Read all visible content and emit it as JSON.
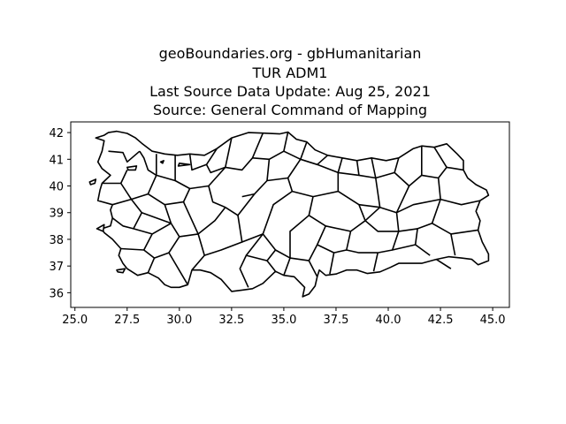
{
  "title": {
    "line1": "geoBoundaries.org - gbHumanitarian",
    "line2": "TUR ADM1",
    "line3": "Last Source Data Update: Aug 25, 2021",
    "line4": "Source: General Command of Mapping"
  },
  "map": {
    "country": "TUR",
    "level": "ADM1",
    "x_range": [
      24.8,
      45.8
    ],
    "y_range": [
      35.45,
      42.4
    ],
    "x_ticks": [
      25.0,
      27.5,
      30.0,
      32.5,
      35.0,
      37.5,
      40.0,
      42.5,
      45.0
    ],
    "x_tick_labels": [
      "25.0",
      "27.5",
      "30.0",
      "32.5",
      "35.0",
      "37.5",
      "40.0",
      "42.5",
      "45.0"
    ],
    "y_ticks": [
      36,
      37,
      38,
      39,
      40,
      41,
      42
    ],
    "y_tick_labels": [
      "36",
      "37",
      "38",
      "39",
      "40",
      "41",
      "42"
    ],
    "stroke_color": "#000000",
    "fill_color": "#ffffff",
    "outline": [
      [
        26.0,
        41.8
      ],
      [
        26.4,
        41.9
      ],
      [
        26.6,
        42.0
      ],
      [
        27.0,
        42.05
      ],
      [
        27.5,
        41.97
      ],
      [
        27.9,
        41.8
      ],
      [
        28.2,
        41.6
      ],
      [
        28.7,
        41.3
      ],
      [
        29.0,
        41.25
      ],
      [
        29.3,
        41.2
      ],
      [
        29.9,
        41.15
      ],
      [
        30.5,
        41.2
      ],
      [
        31.2,
        41.15
      ],
      [
        31.8,
        41.4
      ],
      [
        32.5,
        41.8
      ],
      [
        33.3,
        42.0
      ],
      [
        34.0,
        41.98
      ],
      [
        34.8,
        41.95
      ],
      [
        35.2,
        42.02
      ],
      [
        35.6,
        41.75
      ],
      [
        36.1,
        41.65
      ],
      [
        36.5,
        41.35
      ],
      [
        37.1,
        41.15
      ],
      [
        37.8,
        41.05
      ],
      [
        38.5,
        40.95
      ],
      [
        39.2,
        41.05
      ],
      [
        39.9,
        40.95
      ],
      [
        40.5,
        41.05
      ],
      [
        41.2,
        41.4
      ],
      [
        41.6,
        41.5
      ],
      [
        42.2,
        41.45
      ],
      [
        42.8,
        41.58
      ],
      [
        43.3,
        41.2
      ],
      [
        43.6,
        40.95
      ],
      [
        43.6,
        40.6
      ],
      [
        43.8,
        40.3
      ],
      [
        44.2,
        40.05
      ],
      [
        44.7,
        39.85
      ],
      [
        44.8,
        39.65
      ],
      [
        44.4,
        39.45
      ],
      [
        44.2,
        39.05
      ],
      [
        44.4,
        38.7
      ],
      [
        44.3,
        38.35
      ],
      [
        44.5,
        37.9
      ],
      [
        44.6,
        37.75
      ],
      [
        44.8,
        37.45
      ],
      [
        44.8,
        37.2
      ],
      [
        44.3,
        37.05
      ],
      [
        44.0,
        37.25
      ],
      [
        43.5,
        37.3
      ],
      [
        42.9,
        37.35
      ],
      [
        42.3,
        37.25
      ],
      [
        41.6,
        37.1
      ],
      [
        41.0,
        37.1
      ],
      [
        40.5,
        37.1
      ],
      [
        40.1,
        36.95
      ],
      [
        39.6,
        36.78
      ],
      [
        39.0,
        36.72
      ],
      [
        38.5,
        36.85
      ],
      [
        38.0,
        36.85
      ],
      [
        37.5,
        36.7
      ],
      [
        37.0,
        36.65
      ],
      [
        36.7,
        36.85
      ],
      [
        36.6,
        36.6
      ],
      [
        36.5,
        36.25
      ],
      [
        36.2,
        35.95
      ],
      [
        35.9,
        35.85
      ],
      [
        36.0,
        36.2
      ],
      [
        35.5,
        36.6
      ],
      [
        35.0,
        36.65
      ],
      [
        34.6,
        36.8
      ],
      [
        34.0,
        36.35
      ],
      [
        33.5,
        36.15
      ],
      [
        33.0,
        36.1
      ],
      [
        32.5,
        36.05
      ],
      [
        32.0,
        36.5
      ],
      [
        31.5,
        36.75
      ],
      [
        31.0,
        36.85
      ],
      [
        30.6,
        36.85
      ],
      [
        30.4,
        36.3
      ],
      [
        30.0,
        36.2
      ],
      [
        29.6,
        36.2
      ],
      [
        29.3,
        36.3
      ],
      [
        29.0,
        36.55
      ],
      [
        28.5,
        36.75
      ],
      [
        28.0,
        36.65
      ],
      [
        27.5,
        36.9
      ],
      [
        27.3,
        37.1
      ],
      [
        27.1,
        37.4
      ],
      [
        27.2,
        37.65
      ],
      [
        26.8,
        38.0
      ],
      [
        26.4,
        38.25
      ],
      [
        26.3,
        38.4
      ],
      [
        26.7,
        38.5
      ],
      [
        26.8,
        38.8
      ],
      [
        26.7,
        39.1
      ],
      [
        26.8,
        39.3
      ],
      [
        26.1,
        39.45
      ],
      [
        26.2,
        39.85
      ],
      [
        26.3,
        40.1
      ],
      [
        26.7,
        40.4
      ],
      [
        26.3,
        40.65
      ],
      [
        26.1,
        40.9
      ],
      [
        26.3,
        41.3
      ],
      [
        26.4,
        41.7
      ]
    ],
    "islands": [
      [
        [
          25.7,
          40.15
        ],
        [
          26.0,
          40.25
        ],
        [
          25.95,
          40.1
        ],
        [
          25.75,
          40.05
        ]
      ],
      [
        [
          27.5,
          40.7
        ],
        [
          27.95,
          40.75
        ],
        [
          27.9,
          40.6
        ],
        [
          27.55,
          40.6
        ]
      ],
      [
        [
          29.1,
          40.9
        ],
        [
          29.25,
          40.95
        ],
        [
          29.2,
          40.85
        ]
      ],
      [
        [
          26.05,
          38.4
        ],
        [
          26.4,
          38.55
        ],
        [
          26.35,
          38.3
        ]
      ],
      [
        [
          27.0,
          36.85
        ],
        [
          27.4,
          36.9
        ],
        [
          27.3,
          36.75
        ],
        [
          27.05,
          36.78
        ]
      ],
      [
        [
          30.0,
          40.85
        ],
        [
          30.5,
          40.8
        ],
        [
          29.95,
          40.75
        ]
      ]
    ],
    "internal_borders": [
      [
        [
          26.6,
          41.3
        ],
        [
          27.3,
          41.25
        ],
        [
          27.5,
          40.9
        ],
        [
          28.1,
          41.3
        ]
      ],
      [
        [
          28.1,
          41.3
        ],
        [
          28.3,
          41.05
        ],
        [
          28.5,
          40.6
        ],
        [
          28.9,
          40.4
        ]
      ],
      [
        [
          28.9,
          41.2
        ],
        [
          28.9,
          40.4
        ],
        [
          29.8,
          40.2
        ]
      ],
      [
        [
          29.8,
          41.15
        ],
        [
          29.8,
          40.2
        ],
        [
          30.5,
          39.9
        ]
      ],
      [
        [
          30.5,
          41.2
        ],
        [
          30.6,
          40.6
        ],
        [
          31.3,
          40.8
        ],
        [
          31.5,
          40.5
        ],
        [
          32.2,
          40.7
        ]
      ],
      [
        [
          31.3,
          40.8
        ],
        [
          31.8,
          41.4
        ]
      ],
      [
        [
          32.2,
          40.7
        ],
        [
          32.5,
          41.8
        ]
      ],
      [
        [
          32.2,
          40.7
        ],
        [
          33.0,
          40.6
        ],
        [
          33.5,
          41.05
        ],
        [
          34.0,
          41.98
        ]
      ],
      [
        [
          33.5,
          41.05
        ],
        [
          34.3,
          41.0
        ],
        [
          35.0,
          41.3
        ],
        [
          35.2,
          42.02
        ]
      ],
      [
        [
          35.0,
          41.3
        ],
        [
          35.8,
          41.0
        ],
        [
          36.1,
          41.65
        ]
      ],
      [
        [
          35.8,
          41.0
        ],
        [
          36.6,
          40.8
        ],
        [
          37.1,
          41.15
        ]
      ],
      [
        [
          36.6,
          40.8
        ],
        [
          37.6,
          40.5
        ],
        [
          37.8,
          41.05
        ]
      ],
      [
        [
          37.6,
          40.5
        ],
        [
          38.6,
          40.4
        ],
        [
          38.5,
          40.95
        ]
      ],
      [
        [
          38.6,
          40.4
        ],
        [
          39.4,
          40.3
        ],
        [
          39.2,
          41.05
        ]
      ],
      [
        [
          39.4,
          40.3
        ],
        [
          40.3,
          40.5
        ],
        [
          40.5,
          41.05
        ]
      ],
      [
        [
          40.3,
          40.5
        ],
        [
          41.0,
          40.0
        ],
        [
          41.6,
          40.4
        ],
        [
          41.6,
          41.5
        ]
      ],
      [
        [
          41.6,
          40.4
        ],
        [
          42.4,
          40.3
        ],
        [
          42.8,
          40.7
        ],
        [
          42.2,
          41.45
        ]
      ],
      [
        [
          42.8,
          40.7
        ],
        [
          43.6,
          40.6
        ]
      ],
      [
        [
          42.4,
          40.3
        ],
        [
          42.5,
          39.5
        ],
        [
          43.5,
          39.3
        ],
        [
          44.4,
          39.45
        ]
      ],
      [
        [
          42.5,
          39.5
        ],
        [
          42.1,
          38.6
        ],
        [
          43.0,
          38.2
        ],
        [
          44.3,
          38.35
        ]
      ],
      [
        [
          43.0,
          38.2
        ],
        [
          43.2,
          37.4
        ]
      ],
      [
        [
          42.1,
          38.6
        ],
        [
          41.4,
          38.4
        ],
        [
          41.3,
          37.8
        ],
        [
          42.0,
          37.4
        ]
      ],
      [
        [
          41.4,
          38.4
        ],
        [
          40.5,
          38.3
        ],
        [
          40.2,
          37.6
        ],
        [
          41.3,
          37.8
        ]
      ],
      [
        [
          40.2,
          37.6
        ],
        [
          39.5,
          37.5
        ],
        [
          39.3,
          36.8
        ]
      ],
      [
        [
          40.5,
          38.3
        ],
        [
          40.4,
          39.0
        ],
        [
          41.2,
          39.3
        ],
        [
          42.5,
          39.5
        ]
      ],
      [
        [
          40.4,
          39.0
        ],
        [
          39.6,
          39.2
        ],
        [
          38.9,
          38.7
        ],
        [
          39.5,
          38.3
        ],
        [
          40.5,
          38.3
        ]
      ],
      [
        [
          38.9,
          38.7
        ],
        [
          38.2,
          38.3
        ],
        [
          38.0,
          37.6
        ],
        [
          38.6,
          37.5
        ],
        [
          39.5,
          37.5
        ]
      ],
      [
        [
          38.0,
          37.6
        ],
        [
          37.4,
          37.5
        ],
        [
          37.2,
          36.7
        ]
      ],
      [
        [
          37.4,
          37.5
        ],
        [
          36.6,
          37.8
        ],
        [
          36.2,
          37.2
        ],
        [
          36.6,
          36.6
        ]
      ],
      [
        [
          36.2,
          37.2
        ],
        [
          35.3,
          37.3
        ],
        [
          35.0,
          36.65
        ]
      ],
      [
        [
          35.3,
          37.3
        ],
        [
          34.6,
          37.6
        ],
        [
          34.2,
          37.2
        ],
        [
          34.6,
          36.8
        ]
      ],
      [
        [
          34.2,
          37.2
        ],
        [
          33.2,
          37.4
        ],
        [
          32.9,
          36.9
        ],
        [
          33.3,
          36.2
        ]
      ],
      [
        [
          33.2,
          37.4
        ],
        [
          34.0,
          38.2
        ],
        [
          34.6,
          37.6
        ]
      ],
      [
        [
          36.6,
          37.8
        ],
        [
          37.0,
          38.5
        ],
        [
          38.2,
          38.3
        ]
      ],
      [
        [
          37.0,
          38.5
        ],
        [
          36.2,
          38.9
        ],
        [
          35.3,
          38.3
        ],
        [
          35.3,
          37.3
        ]
      ],
      [
        [
          36.2,
          38.9
        ],
        [
          36.4,
          39.6
        ],
        [
          37.6,
          39.8
        ],
        [
          38.6,
          39.3
        ],
        [
          38.9,
          38.7
        ]
      ],
      [
        [
          38.6,
          39.3
        ],
        [
          39.6,
          39.2
        ],
        [
          39.4,
          40.3
        ]
      ],
      [
        [
          37.6,
          39.8
        ],
        [
          37.6,
          40.5
        ]
      ],
      [
        [
          36.4,
          39.6
        ],
        [
          35.4,
          39.8
        ],
        [
          34.5,
          39.3
        ],
        [
          34.0,
          38.2
        ]
      ],
      [
        [
          35.4,
          39.8
        ],
        [
          35.2,
          40.3
        ],
        [
          35.8,
          41.0
        ]
      ],
      [
        [
          35.2,
          40.3
        ],
        [
          34.2,
          40.2
        ],
        [
          33.6,
          39.7
        ],
        [
          33.0,
          39.6
        ]
      ],
      [
        [
          34.2,
          40.2
        ],
        [
          34.3,
          41.0
        ]
      ],
      [
        [
          33.6,
          39.7
        ],
        [
          32.8,
          38.9
        ],
        [
          32.2,
          39.2
        ],
        [
          31.6,
          39.4
        ],
        [
          31.4,
          40.0
        ],
        [
          32.2,
          40.7
        ]
      ],
      [
        [
          32.8,
          38.9
        ],
        [
          33.0,
          37.9
        ],
        [
          34.0,
          38.2
        ]
      ],
      [
        [
          33.0,
          37.9
        ],
        [
          32.0,
          37.6
        ],
        [
          31.2,
          37.4
        ],
        [
          30.6,
          36.85
        ]
      ],
      [
        [
          31.2,
          37.4
        ],
        [
          30.9,
          38.2
        ],
        [
          31.7,
          38.7
        ],
        [
          32.2,
          39.2
        ]
      ],
      [
        [
          30.9,
          38.2
        ],
        [
          30.0,
          38.1
        ],
        [
          29.5,
          37.5
        ],
        [
          30.4,
          36.3
        ]
      ],
      [
        [
          29.5,
          37.5
        ],
        [
          28.8,
          37.3
        ],
        [
          28.5,
          36.75
        ]
      ],
      [
        [
          28.8,
          37.3
        ],
        [
          28.3,
          37.6
        ],
        [
          27.2,
          37.65
        ]
      ],
      [
        [
          28.3,
          37.6
        ],
        [
          28.7,
          38.2
        ],
        [
          29.6,
          38.6
        ],
        [
          30.0,
          38.1
        ]
      ],
      [
        [
          28.7,
          38.2
        ],
        [
          27.8,
          38.4
        ],
        [
          27.3,
          38.5
        ],
        [
          26.8,
          38.8
        ]
      ],
      [
        [
          27.8,
          38.4
        ],
        [
          28.2,
          39.0
        ],
        [
          29.6,
          38.6
        ]
      ],
      [
        [
          28.2,
          39.0
        ],
        [
          27.7,
          39.5
        ],
        [
          26.8,
          39.3
        ]
      ],
      [
        [
          27.7,
          39.5
        ],
        [
          28.5,
          39.7
        ],
        [
          29.3,
          39.3
        ],
        [
          29.6,
          38.6
        ]
      ],
      [
        [
          29.3,
          39.3
        ],
        [
          30.2,
          39.4
        ],
        [
          30.9,
          38.2
        ]
      ],
      [
        [
          30.2,
          39.4
        ],
        [
          30.5,
          39.9
        ],
        [
          31.4,
          40.0
        ]
      ],
      [
        [
          28.5,
          39.7
        ],
        [
          28.9,
          40.4
        ]
      ],
      [
        [
          26.3,
          40.1
        ],
        [
          27.2,
          40.1
        ],
        [
          27.7,
          39.5
        ]
      ],
      [
        [
          27.2,
          40.1
        ],
        [
          27.5,
          40.6
        ]
      ],
      [
        [
          41.0,
          40.0
        ],
        [
          40.4,
          39.0
        ]
      ],
      [
        [
          43.0,
          36.9
        ],
        [
          42.3,
          37.25
        ]
      ]
    ]
  }
}
